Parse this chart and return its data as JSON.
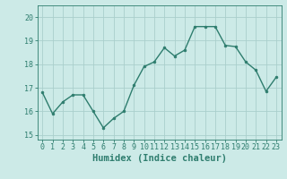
{
  "x": [
    0,
    1,
    2,
    3,
    4,
    5,
    6,
    7,
    8,
    9,
    10,
    11,
    12,
    13,
    14,
    15,
    16,
    17,
    18,
    19,
    20,
    21,
    22,
    23
  ],
  "y": [
    16.8,
    15.9,
    16.4,
    16.7,
    16.7,
    16.0,
    15.3,
    15.7,
    16.0,
    17.1,
    17.9,
    18.1,
    18.7,
    18.35,
    18.6,
    19.6,
    19.6,
    19.6,
    18.8,
    18.75,
    18.1,
    17.75,
    16.85,
    17.45
  ],
  "line_color": "#2e7d6e",
  "marker": "o",
  "markersize": 2.0,
  "linewidth": 1.0,
  "bg_color": "#cceae7",
  "grid_color": "#aacfcc",
  "xlabel": "Humidex (Indice chaleur)",
  "xlabel_fontsize": 7.5,
  "ylim": [
    14.8,
    20.5
  ],
  "xlim": [
    -0.5,
    23.5
  ],
  "yticks": [
    15,
    16,
    17,
    18,
    19,
    20
  ],
  "xticks": [
    0,
    1,
    2,
    3,
    4,
    5,
    6,
    7,
    8,
    9,
    10,
    11,
    12,
    13,
    14,
    15,
    16,
    17,
    18,
    19,
    20,
    21,
    22,
    23
  ],
  "tick_fontsize": 6.0
}
